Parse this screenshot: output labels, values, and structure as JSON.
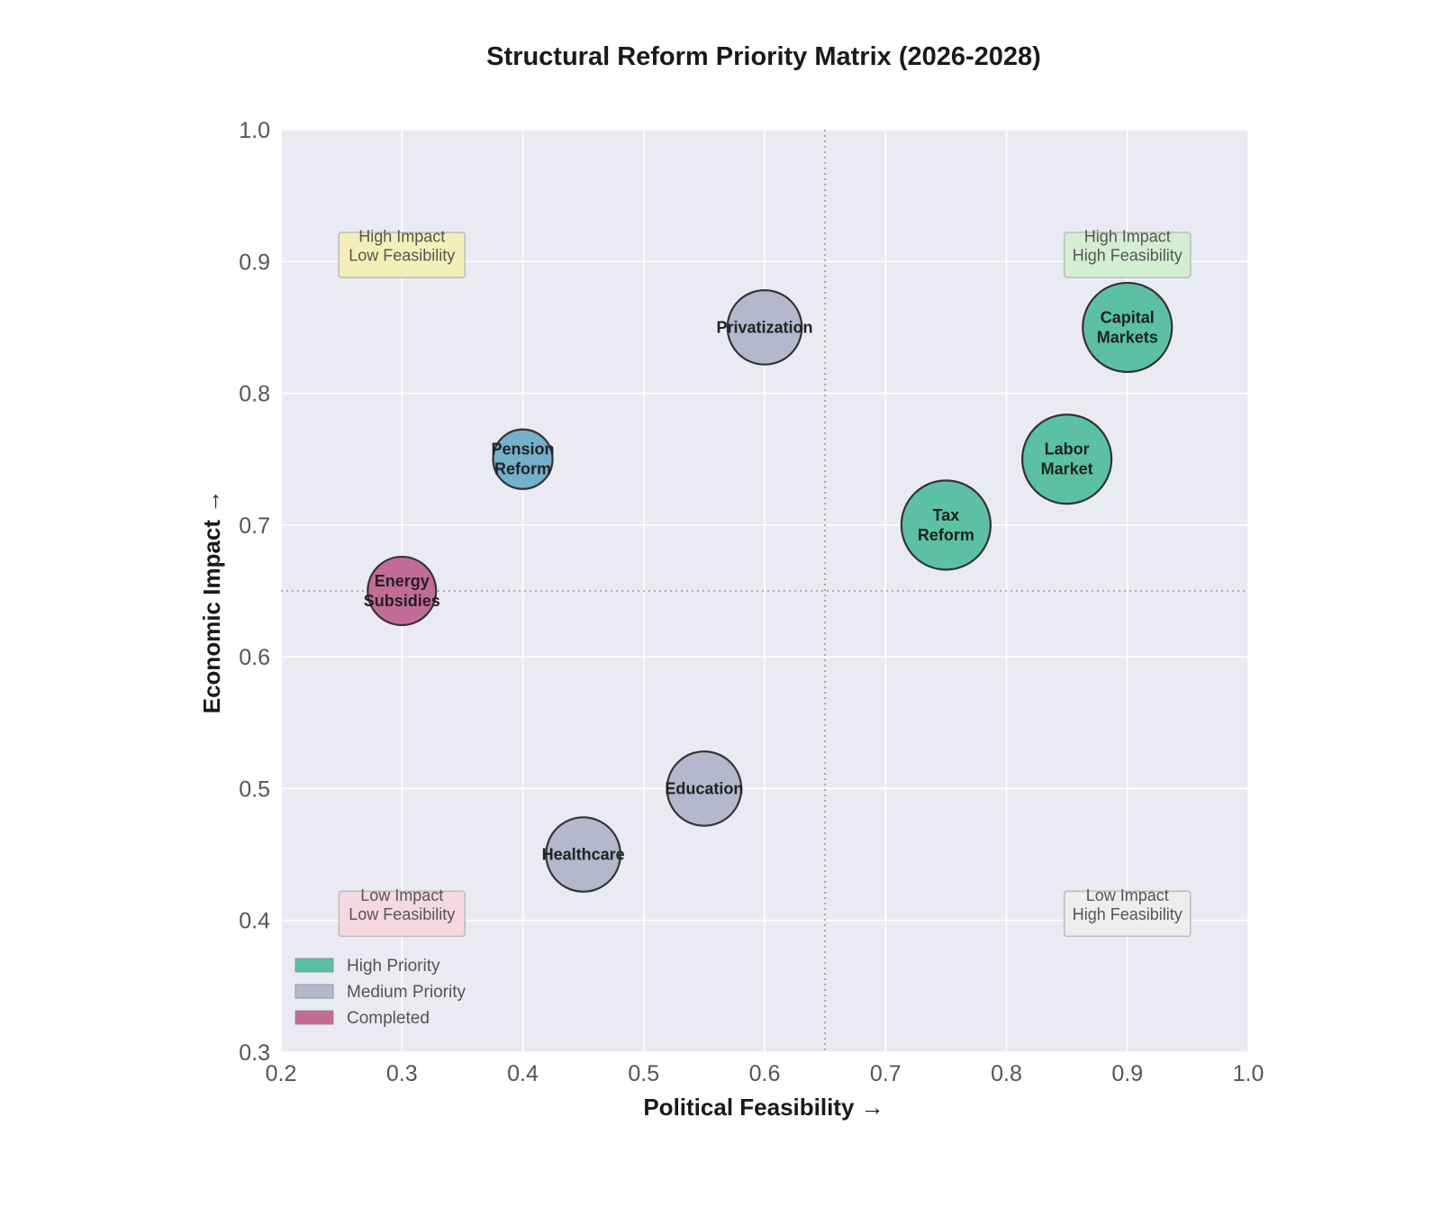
{
  "chart_data": {
    "type": "scatter",
    "subtype": "bubble",
    "title": "Structural Reform Priority Matrix (2026-2028)",
    "xlabel": "Political Feasibility →",
    "ylabel": "Economic Impact →",
    "xlim": [
      0.2,
      1.0
    ],
    "ylim": [
      0.3,
      1.0
    ],
    "xticks": [
      "0.2",
      "0.3",
      "0.4",
      "0.5",
      "0.6",
      "0.7",
      "0.8",
      "0.9",
      "1.0"
    ],
    "yticks": [
      "0.3",
      "0.4",
      "0.5",
      "0.6",
      "0.7",
      "0.8",
      "0.9",
      "1.0"
    ],
    "grid": true,
    "thresholds": {
      "x": 0.65,
      "y": 0.65
    },
    "colors": {
      "High Priority": "#5cc1a2",
      "Medium Priority": "#b4b8cc",
      "Completed": "#c36c98",
      "Pension": "#74b0cc",
      "plot_bg": "#eaeaf2"
    },
    "points": [
      {
        "label": "Capital\nMarkets",
        "x": 0.9,
        "y": 0.85,
        "size": 3.0,
        "category": "High Priority"
      },
      {
        "label": "Labor\nMarket",
        "x": 0.85,
        "y": 0.75,
        "size": 3.0,
        "category": "High Priority"
      },
      {
        "label": "Tax\nReform",
        "x": 0.75,
        "y": 0.7,
        "size": 3.0,
        "category": "High Priority"
      },
      {
        "label": "Privatization",
        "x": 0.6,
        "y": 0.85,
        "size": 2.5,
        "category": "Medium Priority"
      },
      {
        "label": "Pension\nReform",
        "x": 0.4,
        "y": 0.75,
        "size": 2.0,
        "category": "Pension"
      },
      {
        "label": "Energy\nSubsidies",
        "x": 0.3,
        "y": 0.65,
        "size": 2.3,
        "category": "Completed"
      },
      {
        "label": "Education",
        "x": 0.55,
        "y": 0.5,
        "size": 2.5,
        "category": "Medium Priority"
      },
      {
        "label": "Healthcare",
        "x": 0.45,
        "y": 0.45,
        "size": 2.5,
        "category": "Medium Priority"
      }
    ],
    "quadrant_labels": [
      {
        "text": "High Impact\nLow Feasibility",
        "x": 0.3,
        "y": 0.905,
        "color": "#f2f0b8"
      },
      {
        "text": "High Impact\nHigh Feasibility",
        "x": 0.9,
        "y": 0.905,
        "color": "#d4eed4"
      },
      {
        "text": "Low Impact\nLow Feasibility",
        "x": 0.3,
        "y": 0.405,
        "color": "#f5d8e0"
      },
      {
        "text": "Low Impact\nHigh Feasibility",
        "x": 0.9,
        "y": 0.405,
        "color": "#eeeeee"
      }
    ],
    "legend": {
      "position": "lower-left",
      "entries": [
        {
          "label": "High Priority",
          "color": "#5cc1a2"
        },
        {
          "label": "Medium Priority",
          "color": "#b4b8cc"
        },
        {
          "label": "Completed",
          "color": "#c36c98"
        }
      ]
    }
  }
}
